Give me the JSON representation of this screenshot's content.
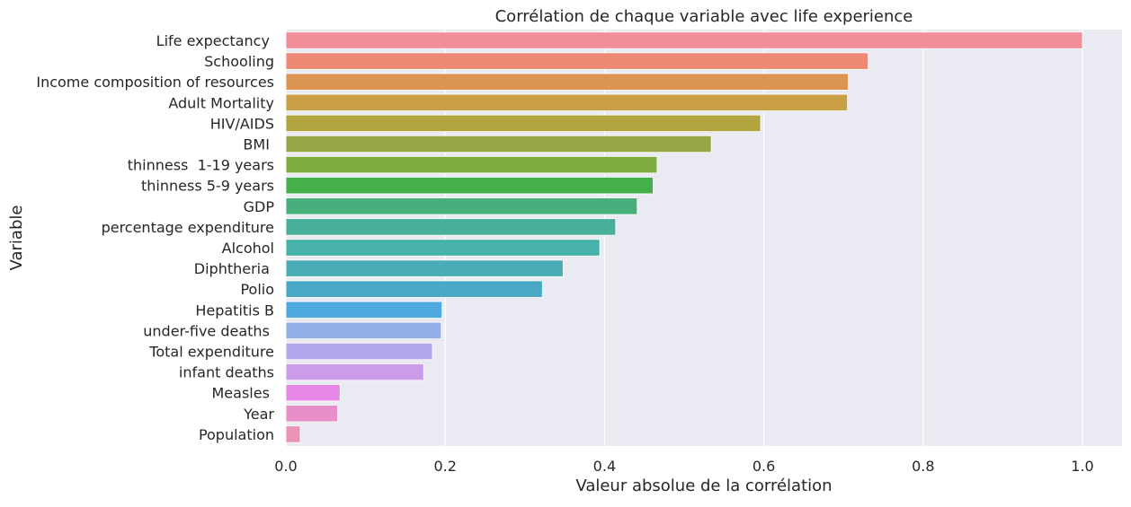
{
  "colors": {
    "background": "#eaeaf2",
    "grid": "#ffffff",
    "text": "#262626"
  },
  "chart_data": {
    "type": "bar",
    "orientation": "horizontal",
    "title": "Corrélation de chaque variable avec life experience",
    "xlabel": "Valeur absolue de la corrélation",
    "ylabel": "Variable",
    "xlim": [
      0,
      1.05
    ],
    "xticks": [
      "0.0",
      "0.2",
      "0.4",
      "0.6",
      "0.8",
      "1.0"
    ],
    "grid": true,
    "categories": [
      "Life expectancy ",
      "Schooling",
      "Income composition of resources",
      "Adult Mortality",
      "HIV/AIDS",
      "BMI ",
      "thinness  1-19 years",
      "thinness 5-9 years",
      "GDP",
      "percentage expenditure",
      "Alcohol",
      "Diphtheria ",
      "Polio",
      "Hepatitis B",
      "under-five deaths ",
      "Total expenditure",
      "infant deaths",
      "Measles ",
      "Year",
      "Population"
    ],
    "values": [
      1.0,
      0.731,
      0.706,
      0.705,
      0.596,
      0.534,
      0.466,
      0.461,
      0.441,
      0.414,
      0.394,
      0.348,
      0.322,
      0.196,
      0.195,
      0.184,
      0.173,
      0.068,
      0.065,
      0.018
    ],
    "colors": [
      "#f08f9a",
      "#ee8a74",
      "#dc9550",
      "#c99f45",
      "#b2a43f",
      "#98a544",
      "#7cac3d",
      "#43b04a",
      "#48ae7c",
      "#48b09a",
      "#47b2a9",
      "#4aacb4",
      "#49a8c3",
      "#4fa9de",
      "#92ade8",
      "#b2a6ed",
      "#cb9de8",
      "#e788e7",
      "#e88fc9",
      "#ea93b6"
    ]
  }
}
